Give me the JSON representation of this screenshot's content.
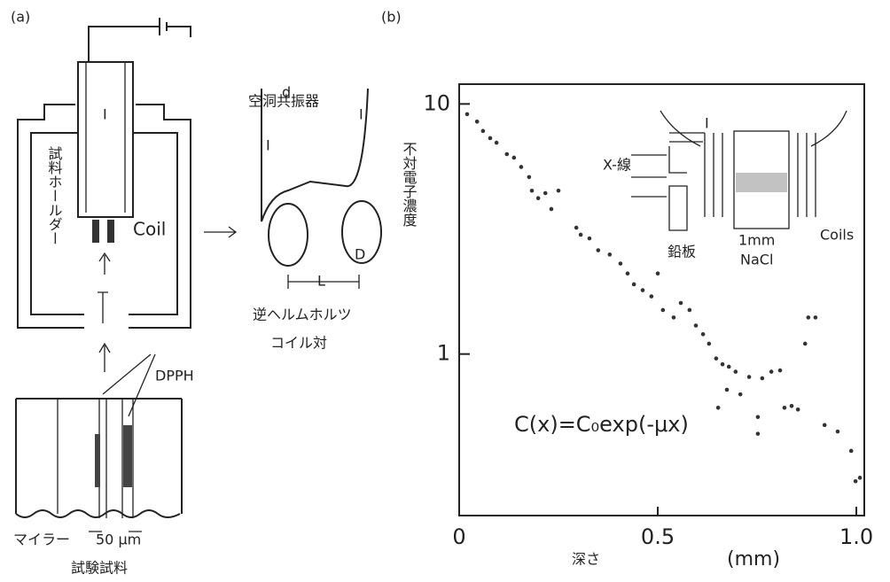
{
  "panel_a": {
    "label": "(a)",
    "cavity": "空洞共振器",
    "holder": "試料ホールダー",
    "coil": "Coil",
    "current": "I",
    "dpph": "DPPH",
    "mylar": "マイラー",
    "thickness": "50 μm",
    "sample": "試験試料",
    "d": "d",
    "current_right": "I",
    "current_left": "I",
    "D": "D",
    "L": "L",
    "coil_pair_1": "逆ヘルムホルツ",
    "coil_pair_2": "コイル対"
  },
  "chart_data": {
    "type": "scatter",
    "panel_label": "(b)",
    "ylabel": "不対電子濃度",
    "xlabel": "深さ",
    "xunit": "(mm)",
    "annotation": "C(x)=C₀exp(-μx)",
    "inset": {
      "xray": "X-線",
      "lead": "鉛板",
      "thickness": "1mm",
      "material": "NaCl",
      "coils": "Coils",
      "current": "I"
    },
    "x": [
      0.02,
      0.045,
      0.06,
      0.078,
      0.094,
      0.12,
      0.138,
      0.156,
      0.176,
      0.183,
      0.199,
      0.217,
      0.232,
      0.25,
      0.295,
      0.306,
      0.328,
      0.35,
      0.379,
      0.406,
      0.424,
      0.44,
      0.462,
      0.484,
      0.5,
      0.513,
      0.54,
      0.558,
      0.58,
      0.596,
      0.614,
      0.629,
      0.647,
      0.663,
      0.679,
      0.696,
      0.73,
      0.763,
      0.786,
      0.808,
      0.674,
      0.708,
      0.752,
      0.752,
      0.652,
      0.819,
      0.837,
      0.853,
      0.871,
      0.879,
      0.897,
      0.92,
      0.953,
      0.987,
      0.998,
      1.009
    ],
    "values": [
      9.1,
      8.5,
      7.8,
      7.3,
      7.0,
      6.3,
      6.1,
      5.6,
      5.1,
      4.5,
      4.2,
      4.4,
      3.8,
      4.5,
      3.2,
      3.0,
      2.9,
      2.6,
      2.5,
      2.3,
      2.1,
      1.9,
      1.8,
      1.7,
      2.1,
      1.5,
      1.4,
      1.6,
      1.5,
      1.3,
      1.2,
      1.1,
      0.96,
      0.91,
      0.89,
      0.85,
      0.81,
      0.8,
      0.85,
      0.86,
      0.72,
      0.69,
      0.56,
      0.48,
      0.61,
      0.61,
      0.62,
      0.6,
      1.1,
      1.4,
      1.4,
      0.52,
      0.49,
      0.41,
      0.31,
      0.32
    ],
    "color": "#333333",
    "xlim": [
      0,
      1.02
    ],
    "ylim": [
      0.226,
      12
    ],
    "log_y": true,
    "xticks": [
      0,
      0.5,
      {
        "value": 1,
        "label": "1.0"
      }
    ],
    "yticks": [
      1,
      10
    ]
  }
}
